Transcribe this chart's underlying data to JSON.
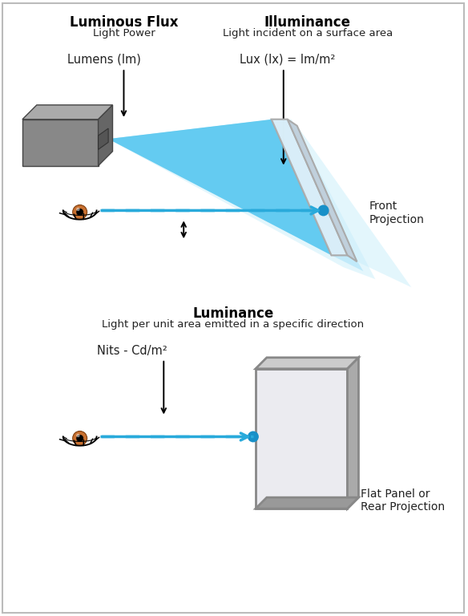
{
  "title_top1": "Luminous Flux",
  "subtitle_top1": "Light Power",
  "title_top2": "Illuminance",
  "subtitle_top2": "Light incident on a surface area",
  "units_top1": "Lumens (lm)",
  "units_top2": "Lux (lx) = lm/m²",
  "label_front": "Front\nProjection",
  "title_mid": "Luminance",
  "subtitle_mid": "Light per unit area emitted in a specific direction",
  "units_mid": "Nits - Cd/m²",
  "label_bottom": "Flat Panel or\nRear Projection",
  "beam_color_bright": "#5ac8f0",
  "beam_color_mid": "#8dd8f5",
  "beam_color_light": "#c8eefb",
  "screen_face": "#ddeef8",
  "screen_glow": "#c0e8f8",
  "screen_edge_dark": "#999999",
  "screen_edge_gray": "#aaaaaa",
  "proj_front": "#888888",
  "proj_top": "#aaaaaa",
  "proj_side": "#666666",
  "proj_dark": "#444444",
  "arrow_color": "#000000",
  "dashed_color": "#29aadb",
  "dot_color": "#1890c8",
  "eye_iris": "#c87020",
  "eye_lash": "#111111"
}
